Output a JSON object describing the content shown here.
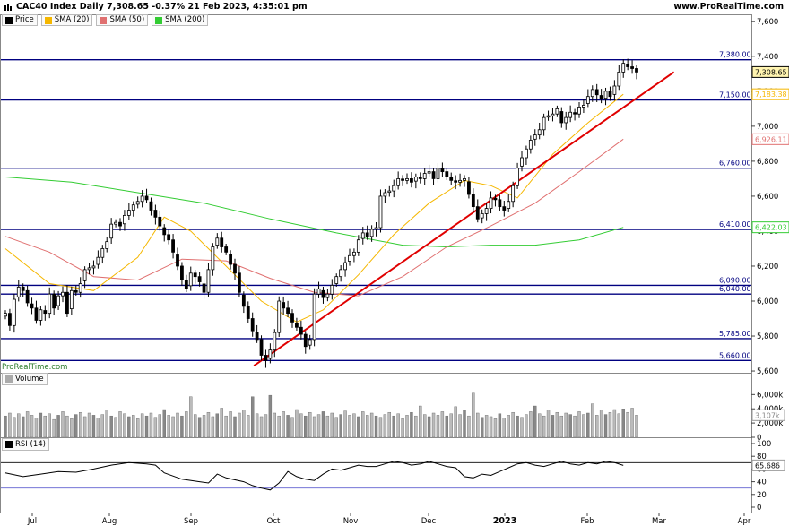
{
  "header": {
    "title": "CAC40 Index Daily 7,308.65 -0.37% 21 Feb 2023, 4:35:01 pm",
    "site": "www.ProRealTime.com",
    "watermark": "ProRealTime.com"
  },
  "legend": [
    {
      "name": "Price",
      "color": "#000000"
    },
    {
      "name": "SMA (20)",
      "color": "#f5b700"
    },
    {
      "name": "SMA (50)",
      "color": "#e07070"
    },
    {
      "name": "SMA (200)",
      "color": "#33cc33"
    }
  ],
  "volume_label": "Volume",
  "rsi_label": "RSI (14)",
  "colors": {
    "level_line": "#000080",
    "trendline": "#e00000",
    "sma20": "#f5b700",
    "sma50": "#e07070",
    "sma200": "#33cc33",
    "rsi": "#000000"
  },
  "chart_data": [
    {
      "type": "candlestick",
      "title": "CAC40 Index Daily",
      "y_ticks": [
        "7,600",
        "7,400",
        "7,200",
        "7,000",
        "6,800",
        "6,600",
        "6,400",
        "6,200",
        "6,000",
        "5,800",
        "5,600"
      ],
      "ylim": [
        5590,
        7640
      ],
      "x_ticks": [
        "Jul",
        "Aug",
        "Sep",
        "Oct",
        "Nov",
        "Dec",
        "2023",
        "Feb",
        "Mar",
        "Apr"
      ],
      "levels": [
        {
          "label": "7,380.00",
          "value": 7380
        },
        {
          "label": "7,150.00",
          "value": 7150
        },
        {
          "label": "6,760.00",
          "value": 6760
        },
        {
          "label": "6,410.00",
          "value": 6410
        },
        {
          "label": "6,090.00",
          "value": 6090
        },
        {
          "label": "6,040.00",
          "value": 6040
        },
        {
          "label": "5,785.00",
          "value": 5785
        },
        {
          "label": "5,660.00",
          "value": 5660
        }
      ],
      "last_price_label": "7,308.65",
      "sma_labels": [
        {
          "label": "7,183.38",
          "value": 7183,
          "color": "#f5b700"
        },
        {
          "label": "6,926.11",
          "value": 6926,
          "color": "#e07070"
        },
        {
          "label": "6,422.03",
          "value": 6422,
          "color": "#33cc33"
        }
      ],
      "trendline": [
        [
          5630,
          0.338
        ],
        [
          7310,
          0.897
        ]
      ],
      "closes": [
        5930,
        5860,
        6010,
        6080,
        6060,
        5990,
        5960,
        5890,
        5950,
        5930,
        6040,
        5960,
        6030,
        6050,
        5930,
        6060,
        6050,
        6100,
        6180,
        6190,
        6200,
        6250,
        6300,
        6340,
        6440,
        6450,
        6430,
        6490,
        6520,
        6550,
        6570,
        6600,
        6580,
        6520,
        6480,
        6430,
        6380,
        6350,
        6280,
        6200,
        6120,
        6070,
        6160,
        6140,
        6110,
        6050,
        6180,
        6310,
        6360,
        6310,
        6280,
        6210,
        6160,
        6050,
        5970,
        5900,
        5830,
        5780,
        5690,
        5660,
        5720,
        5820,
        6000,
        5960,
        5930,
        5880,
        5850,
        5810,
        5740,
        5780,
        6040,
        6070,
        6020,
        6040,
        6090,
        6140,
        6180,
        6220,
        6260,
        6280,
        6350,
        6390,
        6370,
        6410,
        6420,
        6600,
        6620,
        6630,
        6660,
        6700,
        6690,
        6700,
        6680,
        6710,
        6700,
        6730,
        6740,
        6700,
        6760,
        6740,
        6710,
        6690,
        6680,
        6690,
        6700,
        6610,
        6540,
        6470,
        6500,
        6530,
        6590,
        6580,
        6540,
        6520,
        6570,
        6660,
        6760,
        6820,
        6870,
        6920,
        6950,
        6980,
        7050,
        7060,
        7070,
        7100,
        7020,
        7050,
        7080,
        7070,
        7110,
        7120,
        7170,
        7210,
        7180,
        7160,
        7200,
        7170,
        7230,
        7310,
        7360,
        7340,
        7330,
        7310
      ],
      "sma20_points": [
        [
          0,
          6300
        ],
        [
          10,
          6100
        ],
        [
          20,
          6060
        ],
        [
          30,
          6250
        ],
        [
          36,
          6480
        ],
        [
          42,
          6400
        ],
        [
          50,
          6200
        ],
        [
          58,
          6000
        ],
        [
          66,
          5880
        ],
        [
          72,
          5950
        ],
        [
          80,
          6150
        ],
        [
          88,
          6380
        ],
        [
          96,
          6560
        ],
        [
          104,
          6690
        ],
        [
          110,
          6660
        ],
        [
          116,
          6590
        ],
        [
          124,
          6840
        ],
        [
          132,
          7020
        ],
        [
          140,
          7183
        ]
      ],
      "sma50_points": [
        [
          0,
          6370
        ],
        [
          10,
          6280
        ],
        [
          20,
          6140
        ],
        [
          30,
          6120
        ],
        [
          40,
          6240
        ],
        [
          50,
          6230
        ],
        [
          60,
          6130
        ],
        [
          70,
          6050
        ],
        [
          80,
          6030
        ],
        [
          90,
          6140
        ],
        [
          100,
          6310
        ],
        [
          110,
          6430
        ],
        [
          120,
          6560
        ],
        [
          130,
          6740
        ],
        [
          140,
          6926
        ]
      ],
      "sma200_points": [
        [
          0,
          6710
        ],
        [
          15,
          6680
        ],
        [
          30,
          6620
        ],
        [
          45,
          6560
        ],
        [
          60,
          6470
        ],
        [
          75,
          6390
        ],
        [
          90,
          6320
        ],
        [
          100,
          6310
        ],
        [
          110,
          6320
        ],
        [
          120,
          6320
        ],
        [
          130,
          6350
        ],
        [
          140,
          6422
        ]
      ]
    },
    {
      "type": "bar",
      "title": "Volume",
      "y_ticks": [
        "6,000k",
        "4,000k",
        "2,000k",
        "0"
      ],
      "ylim": [
        0,
        7300000
      ],
      "last_label": "3,107k",
      "values": [
        3000000,
        3400000,
        2800000,
        3300000,
        2900000,
        3600000,
        3100000,
        2700000,
        3400000,
        3000000,
        3300000,
        2500000,
        3100000,
        3600000,
        3000000,
        2600000,
        3200000,
        3500000,
        2900000,
        3400000,
        3100000,
        2700000,
        3200000,
        3800000,
        3000000,
        2800000,
        3600000,
        3300000,
        2900000,
        3100000,
        2600000,
        3300000,
        3000000,
        3400000,
        2800000,
        3200000,
        3900000,
        3100000,
        2900000,
        3400000,
        3000000,
        3600000,
        5700000,
        3200000,
        2800000,
        3100000,
        3500000,
        2900000,
        3300000,
        4100000,
        3000000,
        3600000,
        2900000,
        3400000,
        3800000,
        3100000,
        5700000,
        3300000,
        2900000,
        3200000,
        5900000,
        3400000,
        3000000,
        3600000,
        3100000,
        2800000,
        3900000,
        3300000,
        3000000,
        3500000,
        2900000,
        3200000,
        3600000,
        3000000,
        3400000,
        2800000,
        3200000,
        3700000,
        3100000,
        3300000,
        2900000,
        3600000,
        3100000,
        3400000,
        3000000,
        2800000,
        3200000,
        3500000,
        3000000,
        3300000,
        2600000,
        3100000,
        3500000,
        3000000,
        4400000,
        3200000,
        2900000,
        3400000,
        3100000,
        3600000,
        3000000,
        3300000,
        4300000,
        3200000,
        3800000,
        3000000,
        6200000,
        3400000,
        2800000,
        3100000,
        2900000,
        2600000,
        3300000,
        2700000,
        3100000,
        3500000,
        3000000,
        2800000,
        3200000,
        3600000,
        4400000,
        3300000,
        3000000,
        3800000,
        3100000,
        3500000,
        3000000,
        3400000,
        3200000,
        3000000,
        3600000,
        3200000,
        3400000,
        4700000,
        3100000,
        3800000,
        3200000,
        3500000,
        3900000,
        3300000,
        4000000,
        3500000,
        4100000,
        3107000
      ]
    },
    {
      "type": "line",
      "title": "RSI (14)",
      "y_ticks": [
        "100",
        "80",
        "60",
        "40",
        "20",
        "0"
      ],
      "ylim": [
        0,
        100
      ],
      "levels": [
        70,
        30
      ],
      "last_label": "65.686",
      "points": [
        [
          0,
          54
        ],
        [
          4,
          48
        ],
        [
          8,
          52
        ],
        [
          12,
          56
        ],
        [
          16,
          55
        ],
        [
          20,
          60
        ],
        [
          24,
          66
        ],
        [
          28,
          70
        ],
        [
          32,
          68
        ],
        [
          34,
          66
        ],
        [
          36,
          54
        ],
        [
          40,
          44
        ],
        [
          44,
          40
        ],
        [
          46,
          38
        ],
        [
          48,
          52
        ],
        [
          50,
          46
        ],
        [
          54,
          40
        ],
        [
          56,
          34
        ],
        [
          58,
          30
        ],
        [
          60,
          27
        ],
        [
          62,
          38
        ],
        [
          64,
          56
        ],
        [
          66,
          48
        ],
        [
          68,
          44
        ],
        [
          70,
          42
        ],
        [
          72,
          52
        ],
        [
          74,
          60
        ],
        [
          76,
          58
        ],
        [
          78,
          62
        ],
        [
          80,
          66
        ],
        [
          82,
          64
        ],
        [
          84,
          64
        ],
        [
          86,
          68
        ],
        [
          88,
          72
        ],
        [
          90,
          70
        ],
        [
          92,
          66
        ],
        [
          94,
          68
        ],
        [
          96,
          72
        ],
        [
          98,
          68
        ],
        [
          100,
          64
        ],
        [
          102,
          62
        ],
        [
          104,
          48
        ],
        [
          106,
          46
        ],
        [
          108,
          52
        ],
        [
          110,
          50
        ],
        [
          112,
          56
        ],
        [
          114,
          62
        ],
        [
          116,
          68
        ],
        [
          118,
          70
        ],
        [
          120,
          66
        ],
        [
          122,
          64
        ],
        [
          124,
          68
        ],
        [
          126,
          72
        ],
        [
          128,
          68
        ],
        [
          130,
          66
        ],
        [
          132,
          70
        ],
        [
          134,
          68
        ],
        [
          136,
          72
        ],
        [
          138,
          70
        ],
        [
          140,
          65.686
        ]
      ]
    }
  ]
}
